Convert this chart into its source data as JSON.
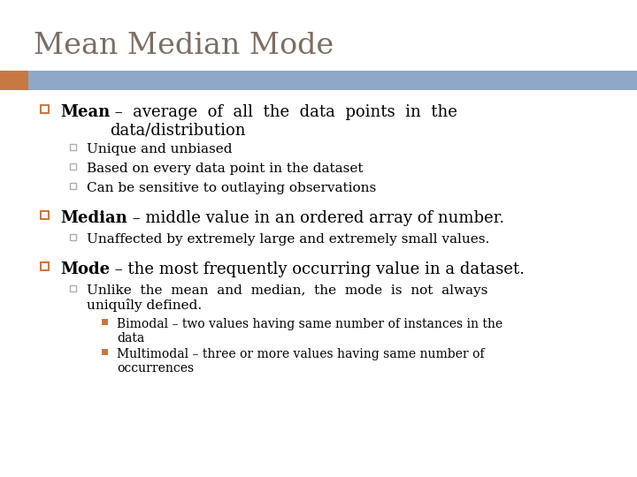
{
  "title": "Mean Median Mode",
  "title_color": "#7B6F63",
  "bg_color": "#FFFFFF",
  "header_bar_color": "#8FA8C8",
  "header_accent_color": "#C87941",
  "bullet_color_orange": "#C87941",
  "square_color": "#B0B0B0",
  "small_square_color": "#C87941",
  "content": [
    {
      "level": 1,
      "bold_text": "Mean",
      "rest_text": " –  average  of  all  the  data  points  in  the\ndata/distribution",
      "children": [
        {
          "level": 2,
          "text": "Unique and unbiased",
          "children": []
        },
        {
          "level": 2,
          "text": "Based on every data point in the dataset",
          "children": []
        },
        {
          "level": 2,
          "text": "Can be sensitive to outlaying observations",
          "children": []
        }
      ]
    },
    {
      "level": 1,
      "bold_text": "Median",
      "rest_text": " – middle value in an ordered array of number.",
      "children": [
        {
          "level": 2,
          "text": "Unaffected by extremely large and extremely small values.",
          "children": []
        }
      ]
    },
    {
      "level": 1,
      "bold_text": "Mode",
      "rest_text": " – the most frequently occurring value in a dataset.",
      "children": [
        {
          "level": 2,
          "text": "Unlike  the  mean  and  median,  the  mode  is  not  always\nuniquîly defined.",
          "children": [
            {
              "level": 3,
              "text": "Bimodal – two values having same number of instances in the\ndata"
            },
            {
              "level": 3,
              "text": "Multimodal – three or more values having same number of\noccurrences"
            }
          ]
        }
      ]
    }
  ]
}
